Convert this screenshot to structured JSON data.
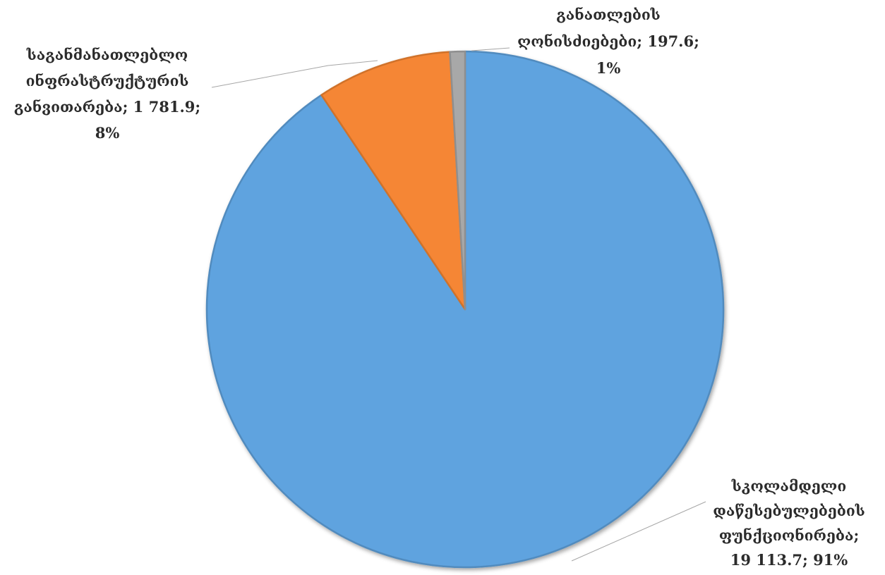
{
  "chart_data": {
    "type": "pie",
    "title": "",
    "slices": [
      {
        "label_lines": [
          "სკოლამდელი",
          "დაწესებულებების",
          "ფუნქციონირება;",
          "19 113.7; 91%"
        ],
        "value": 19113.7,
        "percent": "91%",
        "color": "#5fa3df"
      },
      {
        "label_lines": [
          "საგანმანათლებლო",
          "ინფრასტრუქტურის",
          "განვითარება; 1 781.9;",
          "8%"
        ],
        "value": 1781.9,
        "percent": "8%",
        "color": "#f58634"
      },
      {
        "label_lines": [
          "განათლების",
          "ღონისძიებები; 197.6;",
          "1%"
        ],
        "value": 197.6,
        "percent": "1%",
        "color": "#a8a8a8"
      }
    ]
  }
}
